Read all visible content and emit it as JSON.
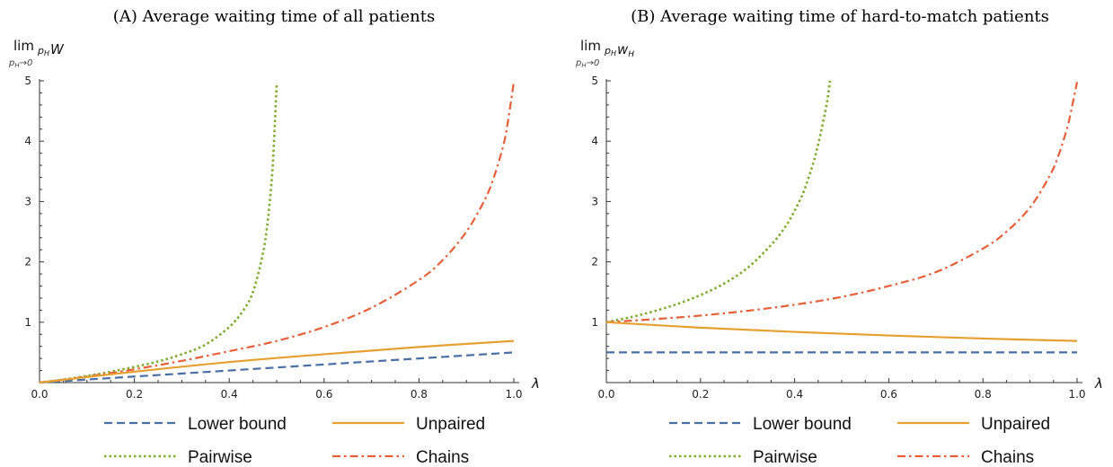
{
  "chart_data": [
    {
      "type": "line",
      "title": "(A) Average waiting time of all patients",
      "ylabel": {
        "lim": "lim",
        "sub": "p",
        "sub_index": "H",
        "sub_rest": "→0",
        "expr": "p",
        "expr_index": "H",
        "expr_var": "W"
      },
      "xlabel": "λ",
      "xlim": [
        0,
        1
      ],
      "ylim": [
        0,
        5
      ],
      "xticks": [
        "0.0",
        "0.2",
        "0.4",
        "0.6",
        "0.8",
        "1.0"
      ],
      "yticks": [
        "1",
        "2",
        "3",
        "4",
        "5"
      ],
      "grid": false,
      "legend_position": "bottom",
      "series": [
        {
          "name": "Lower bound",
          "color": "#4a6fa5",
          "style": "dashed",
          "x": [
            0,
            0.2,
            0.4,
            0.6,
            0.8,
            1.0
          ],
          "y": [
            0,
            0.1,
            0.2,
            0.3,
            0.4,
            0.5
          ]
        },
        {
          "name": "Unpaired",
          "color": "#e6a032",
          "style": "solid",
          "x": [
            0,
            0.2,
            0.4,
            0.6,
            0.8,
            1.0
          ],
          "y": [
            0,
            0.18,
            0.34,
            0.47,
            0.59,
            0.69
          ]
        },
        {
          "name": "Pairwise",
          "color": "#7fac2f",
          "style": "dotted",
          "x": [
            0,
            0.05,
            0.1,
            0.15,
            0.2,
            0.25,
            0.3,
            0.35,
            0.4,
            0.43,
            0.45,
            0.47,
            0.48,
            0.49,
            0.495,
            0.5
          ],
          "y": [
            0,
            0.05,
            0.11,
            0.18,
            0.26,
            0.35,
            0.47,
            0.63,
            0.92,
            1.2,
            1.5,
            2.1,
            2.6,
            3.4,
            4.1,
            4.95
          ]
        },
        {
          "name": "Chains",
          "color": "#e5603a",
          "style": "dashdot",
          "x": [
            0,
            0.1,
            0.2,
            0.3,
            0.4,
            0.5,
            0.6,
            0.7,
            0.8,
            0.85,
            0.9,
            0.94,
            0.96,
            0.98,
            0.99,
            1.0
          ],
          "y": [
            0,
            0.1,
            0.22,
            0.36,
            0.52,
            0.69,
            0.92,
            1.24,
            1.7,
            2.03,
            2.5,
            3.05,
            3.45,
            4.0,
            4.45,
            4.98
          ]
        }
      ]
    },
    {
      "type": "line",
      "title": "(B) Average waiting time of hard-to-match patients",
      "ylabel": {
        "lim": "lim",
        "sub": "p",
        "sub_index": "H",
        "sub_rest": "→0",
        "expr": "p",
        "expr_index": "H",
        "expr_var": "w",
        "expr_var_index": "H"
      },
      "xlabel": "λ",
      "xlim": [
        0,
        1
      ],
      "ylim": [
        0,
        5
      ],
      "xticks": [
        "0.0",
        "0.2",
        "0.4",
        "0.6",
        "0.8",
        "1.0"
      ],
      "yticks": [
        "1",
        "2",
        "3",
        "4",
        "5"
      ],
      "grid": false,
      "legend_position": "bottom",
      "series": [
        {
          "name": "Lower bound",
          "color": "#4a6fa5",
          "style": "dashed",
          "x": [
            0,
            1.0
          ],
          "y": [
            0.5,
            0.5
          ]
        },
        {
          "name": "Unpaired",
          "color": "#e6a032",
          "style": "solid",
          "x": [
            0,
            0.2,
            0.4,
            0.6,
            0.8,
            1.0
          ],
          "y": [
            1.0,
            0.91,
            0.84,
            0.78,
            0.73,
            0.69
          ]
        },
        {
          "name": "Pairwise",
          "color": "#7fac2f",
          "style": "dotted",
          "x": [
            0,
            0.05,
            0.1,
            0.15,
            0.2,
            0.25,
            0.3,
            0.35,
            0.38,
            0.4,
            0.42,
            0.44,
            0.45,
            0.46,
            0.47,
            0.475
          ],
          "y": [
            1.0,
            1.08,
            1.18,
            1.3,
            1.45,
            1.64,
            1.9,
            2.28,
            2.58,
            2.85,
            3.18,
            3.65,
            3.95,
            4.3,
            4.7,
            5.0
          ]
        },
        {
          "name": "Chains",
          "color": "#e5603a",
          "style": "dashdot",
          "x": [
            0,
            0.1,
            0.2,
            0.3,
            0.4,
            0.5,
            0.6,
            0.7,
            0.8,
            0.85,
            0.9,
            0.94,
            0.96,
            0.98,
            0.99,
            1.0
          ],
          "y": [
            1.0,
            1.05,
            1.11,
            1.19,
            1.29,
            1.42,
            1.6,
            1.83,
            2.22,
            2.5,
            2.9,
            3.4,
            3.75,
            4.25,
            4.6,
            4.98
          ]
        }
      ]
    }
  ]
}
